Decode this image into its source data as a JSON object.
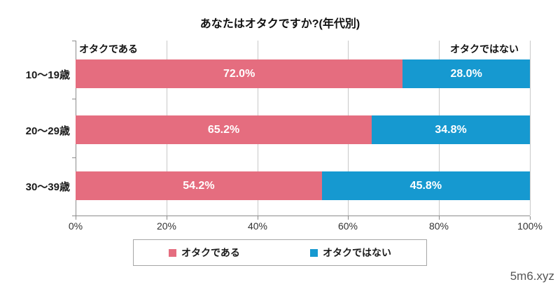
{
  "chart_data": {
    "type": "bar",
    "orientation": "horizontal-stacked",
    "title": "あなたはオタクですか?(年代別)",
    "categories": [
      "10〜19歳",
      "20〜29歳",
      "30〜39歳"
    ],
    "series": [
      {
        "name": "オタクである",
        "color": "#e56d7f",
        "values": [
          72.0,
          65.2,
          54.2
        ],
        "labels": [
          "72.0%",
          "65.2%",
          "54.2%"
        ]
      },
      {
        "name": "オタクではない",
        "color": "#1699d0",
        "values": [
          28.0,
          34.8,
          45.8
        ],
        "labels": [
          "28.0%",
          "34.8%",
          "45.8%"
        ]
      }
    ],
    "annotations": {
      "top_left": "オタクである",
      "top_right": "オタクではない"
    },
    "x_ticks": [
      "0%",
      "20%",
      "40%",
      "60%",
      "80%",
      "100%"
    ],
    "xlim": [
      0,
      100
    ],
    "grid": true,
    "legend_position": "bottom"
  },
  "watermark": "5m6.xyz"
}
